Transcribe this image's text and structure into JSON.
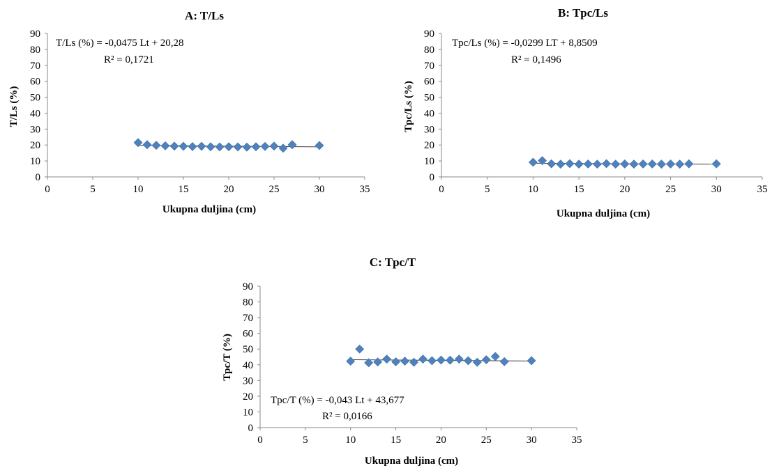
{
  "chart_data": [
    {
      "type": "scatter",
      "title": "A: T/Ls",
      "xlabel": "Ukupna duljina (cm)",
      "ylabel": "T/Ls (%)",
      "xlim": [
        0,
        35
      ],
      "ylim": [
        0,
        90
      ],
      "x_ticks": [
        "0",
        "5",
        "10",
        "15",
        "20",
        "25",
        "30",
        "35"
      ],
      "y_ticks": [
        "0",
        "10",
        "20",
        "30",
        "40",
        "50",
        "60",
        "70",
        "80",
        "90"
      ],
      "grid": false,
      "marker_color": "#4f81bd",
      "trendline_color": "#404040",
      "trendline": {
        "slope": -0.0475,
        "intercept": 20.28,
        "x_range": [
          10,
          30
        ]
      },
      "equation": "T/Ls (%) = -0,0475  Lt + 20,28",
      "r_squared": "R² = 0,1721",
      "x": [
        10,
        11,
        12,
        13,
        14,
        15,
        16,
        17,
        18,
        19,
        20,
        21,
        22,
        23,
        24,
        25,
        26,
        27,
        30
      ],
      "y": [
        21.5,
        20.2,
        19.8,
        19.5,
        19.3,
        19.2,
        19.0,
        19.2,
        18.9,
        18.8,
        18.9,
        18.8,
        18.7,
        18.9,
        19.1,
        19.3,
        18.0,
        20.2,
        19.7
      ]
    },
    {
      "type": "scatter",
      "title": "B: Tpc/Ls",
      "xlabel": "Ukupna duljina (cm)",
      "ylabel": "Tpc/Ls (%)",
      "xlim": [
        0,
        35
      ],
      "ylim": [
        0,
        90
      ],
      "x_ticks": [
        "0",
        "5",
        "10",
        "15",
        "20",
        "25",
        "30",
        "35"
      ],
      "y_ticks": [
        "0",
        "10",
        "20",
        "30",
        "40",
        "50",
        "60",
        "70",
        "80",
        "90"
      ],
      "grid": false,
      "marker_color": "#4f81bd",
      "trendline_color": "#404040",
      "trendline": {
        "slope": -0.0299,
        "intercept": 8.8509,
        "x_range": [
          10,
          30
        ]
      },
      "equation": "Tpc/Ls (%) = -0,0299  LT + 8,8509",
      "r_squared": "R² = 0,1496",
      "x": [
        10,
        11,
        12,
        13,
        14,
        15,
        16,
        17,
        18,
        19,
        20,
        21,
        22,
        23,
        24,
        25,
        26,
        27,
        30
      ],
      "y": [
        9.2,
        10.2,
        8.2,
        8.0,
        8.3,
        8.0,
        8.1,
        8.0,
        8.3,
        8.0,
        8.1,
        8.0,
        8.1,
        8.1,
        8.0,
        8.1,
        8.0,
        8.2,
        8.2
      ]
    },
    {
      "type": "scatter",
      "title": "C: Tpc/T",
      "xlabel": "Ukupna duljina (cm)",
      "ylabel": "Tpc/T (%)",
      "xlim": [
        0,
        35
      ],
      "ylim": [
        0,
        90
      ],
      "x_ticks": [
        "0",
        "5",
        "10",
        "15",
        "20",
        "25",
        "30",
        "35"
      ],
      "y_ticks": [
        "0",
        "10",
        "20",
        "30",
        "40",
        "50",
        "60",
        "70",
        "80",
        "90"
      ],
      "grid": false,
      "marker_color": "#4f81bd",
      "trendline_color": "#404040",
      "trendline": {
        "slope": -0.043,
        "intercept": 43.677,
        "x_range": [
          10,
          30
        ]
      },
      "equation": "Tpc/T (%) = -0,043  Lt + 43,677",
      "r_squared": "R² = 0,0166",
      "x": [
        10,
        11,
        12,
        13,
        14,
        15,
        16,
        17,
        18,
        19,
        20,
        21,
        22,
        23,
        24,
        25,
        26,
        27,
        30
      ],
      "y": [
        42.3,
        50.0,
        41.3,
        41.8,
        43.6,
        41.9,
        42.3,
        41.6,
        43.6,
        42.6,
        43.0,
        42.9,
        43.6,
        42.6,
        41.6,
        43.2,
        45.3,
        42.0,
        42.6
      ]
    }
  ]
}
